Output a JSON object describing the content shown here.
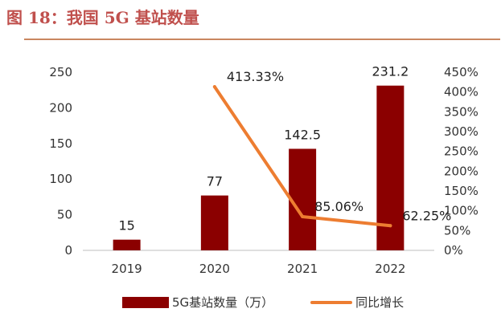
{
  "figure_title": "图 18：我国 5G 基站数量",
  "colors": {
    "bar": "#8b0000",
    "line": "#ed7d31",
    "title": "#c0504d",
    "rule": "#c9865f"
  },
  "chart_data": {
    "type": "bar",
    "categories": [
      "2019",
      "2020",
      "2021",
      "2022"
    ],
    "series": [
      {
        "name": "5G基站数量（万）",
        "type": "bar",
        "axis": "left",
        "values": [
          15,
          77,
          142.5,
          231.2
        ],
        "labels": [
          "15",
          "77",
          "142.5",
          "231.2"
        ]
      },
      {
        "name": "同比增长",
        "type": "line",
        "axis": "right",
        "values": [
          null,
          413.33,
          85.06,
          62.25
        ],
        "labels": [
          "",
          "413.33%",
          "85.06%",
          "62.25%"
        ]
      }
    ],
    "y_left": {
      "ylim": [
        0,
        250
      ],
      "ticks": [
        "0",
        "50",
        "100",
        "150",
        "200",
        "250"
      ]
    },
    "y_right": {
      "ylim": [
        0,
        450
      ],
      "ticks": [
        "0%",
        "50%",
        "100%",
        "150%",
        "200%",
        "250%",
        "300%",
        "350%",
        "400%",
        "450%"
      ]
    },
    "legend": {
      "position": "bottom",
      "entries": [
        "5G基站数量（万）",
        "同比增长"
      ]
    },
    "grid": false
  }
}
